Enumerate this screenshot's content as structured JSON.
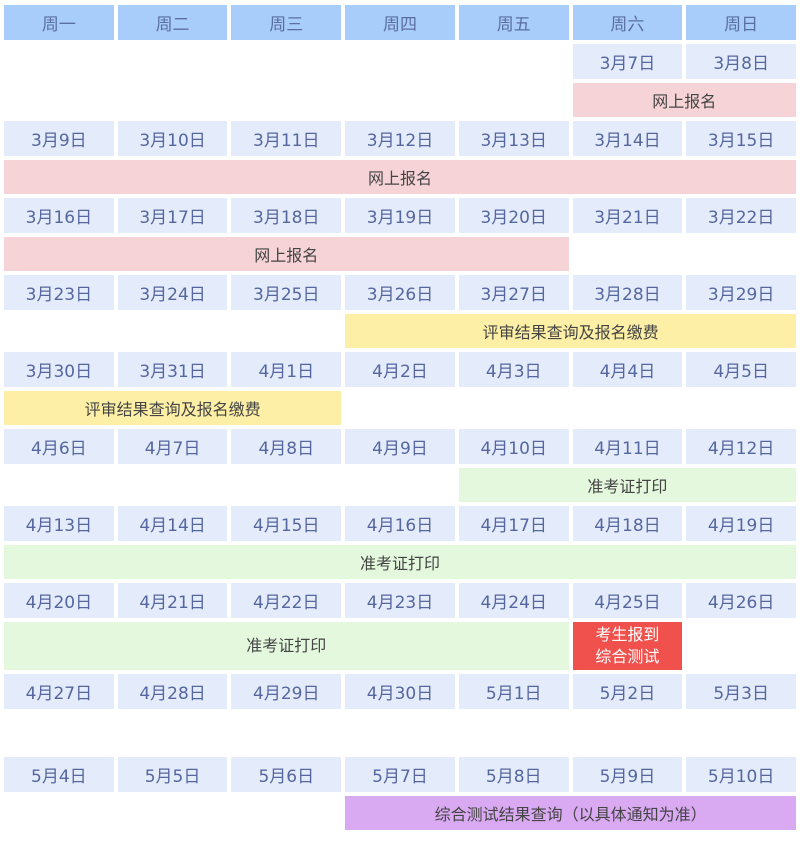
{
  "weekdays": [
    "周一",
    "周二",
    "周三",
    "周四",
    "周五",
    "周六",
    "周日"
  ],
  "colors": {
    "header": "#a8cdfb",
    "date": "#e4ebfb",
    "online_registration": "#f6d3d6",
    "review_payment": "#fdf0a6",
    "admit_card": "#e3f8dd",
    "test": "#f0514d",
    "result": "#d9a9f2"
  },
  "rows": [
    {
      "type": "dates",
      "cells": [
        null,
        null,
        null,
        null,
        null,
        "3月7日",
        "3月8日"
      ]
    },
    {
      "type": "events",
      "events": [
        {
          "label": "网上报名",
          "start_day": 6,
          "days": 2,
          "color": "#f6d3d6"
        }
      ]
    },
    {
      "type": "dates",
      "cells": [
        "3月9日",
        "3月10日",
        "3月11日",
        "3月12日",
        "3月13日",
        "3月14日",
        "3月15日"
      ]
    },
    {
      "type": "events",
      "events": [
        {
          "label": "网上报名",
          "start_day": 1,
          "days": 7,
          "color": "#f6d3d6"
        }
      ]
    },
    {
      "type": "dates",
      "cells": [
        "3月16日",
        "3月17日",
        "3月18日",
        "3月19日",
        "3月20日",
        "3月21日",
        "3月22日"
      ]
    },
    {
      "type": "events",
      "events": [
        {
          "label": "网上报名",
          "start_day": 1,
          "days": 5,
          "color": "#f6d3d6"
        }
      ]
    },
    {
      "type": "dates",
      "cells": [
        "3月23日",
        "3月24日",
        "3月25日",
        "3月26日",
        "3月27日",
        "3月28日",
        "3月29日"
      ]
    },
    {
      "type": "events",
      "events": [
        {
          "label": "评审结果查询及报名缴费",
          "start_day": 4,
          "days": 4,
          "color": "#fdf0a6"
        }
      ]
    },
    {
      "type": "dates",
      "cells": [
        "3月30日",
        "3月31日",
        "4月1日",
        "4月2日",
        "4月3日",
        "4月4日",
        "4月5日"
      ]
    },
    {
      "type": "events",
      "events": [
        {
          "label": "评审结果查询及报名缴费",
          "start_day": 1,
          "days": 3,
          "color": "#fdf0a6"
        }
      ]
    },
    {
      "type": "dates",
      "cells": [
        "4月6日",
        "4月7日",
        "4月8日",
        "4月9日",
        "4月10日",
        "4月11日",
        "4月12日"
      ]
    },
    {
      "type": "events",
      "events": [
        {
          "label": "准考证打印",
          "start_day": 5,
          "days": 3,
          "color": "#e3f8dd"
        }
      ]
    },
    {
      "type": "dates",
      "cells": [
        "4月13日",
        "4月14日",
        "4月15日",
        "4月16日",
        "4月17日",
        "4月18日",
        "4月19日"
      ]
    },
    {
      "type": "events",
      "events": [
        {
          "label": "准考证打印",
          "start_day": 1,
          "days": 7,
          "color": "#e3f8dd"
        }
      ]
    },
    {
      "type": "dates",
      "cells": [
        "4月20日",
        "4月21日",
        "4月22日",
        "4月23日",
        "4月24日",
        "4月25日",
        "4月26日"
      ]
    },
    {
      "type": "events",
      "tall": true,
      "events": [
        {
          "label": "准考证打印",
          "start_day": 1,
          "days": 5,
          "color": "#e3f8dd"
        },
        {
          "label": "考生报到\n综合测试",
          "start_day": 6,
          "days": 1,
          "color": "#f0514d",
          "text_color": "#ffffff"
        }
      ]
    },
    {
      "type": "dates",
      "cells": [
        "4月27日",
        "4月28日",
        "4月29日",
        "4月30日",
        "5月1日",
        "5月2日",
        "5月3日"
      ]
    },
    {
      "type": "blank"
    },
    {
      "type": "dates",
      "cells": [
        "5月4日",
        "5月5日",
        "5月6日",
        "5月7日",
        "5月8日",
        "5月9日",
        "5月10日"
      ]
    },
    {
      "type": "events",
      "events": [
        {
          "label": "综合测试结果查询（以具体通知为准）",
          "start_day": 4,
          "days": 4,
          "color": "#d9a9f2"
        }
      ]
    }
  ]
}
